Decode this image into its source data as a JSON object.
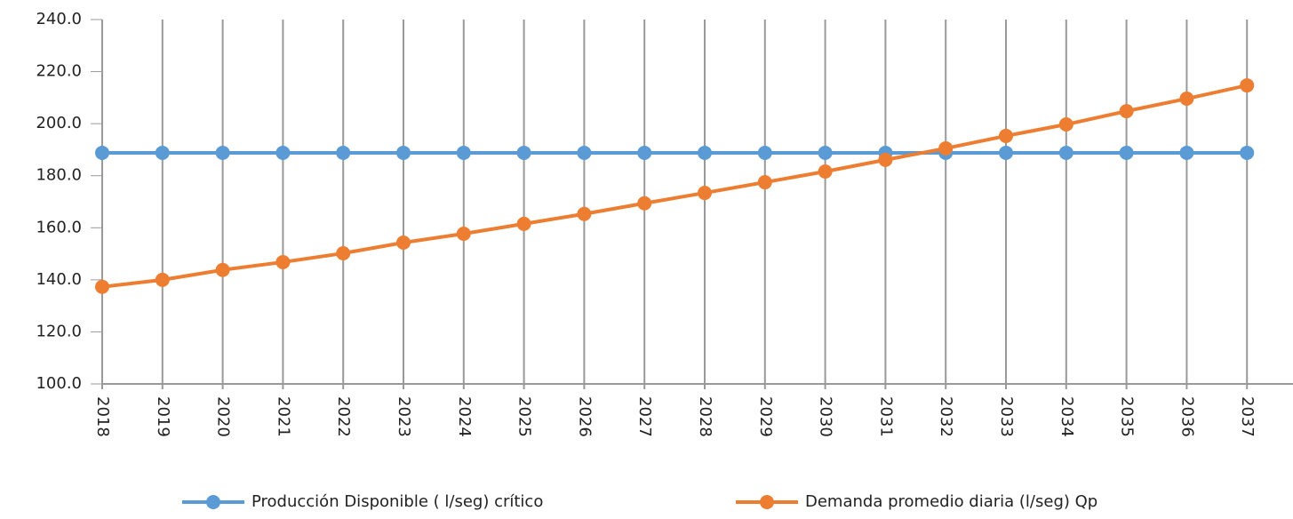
{
  "chart_data": {
    "type": "line",
    "categories": [
      "2018",
      "2019",
      "2020",
      "2021",
      "2022",
      "2023",
      "2024",
      "2025",
      "2026",
      "2027",
      "2028",
      "2029",
      "2030",
      "2031",
      "2032",
      "2033",
      "2034",
      "2035",
      "2036",
      "2037"
    ],
    "series": [
      {
        "name": "Producción Disponible ( l/seg) crítico",
        "color": "#5b9bd5",
        "values": [
          188.8,
          188.8,
          188.8,
          188.8,
          188.8,
          188.8,
          188.8,
          188.8,
          188.8,
          188.8,
          188.8,
          188.8,
          188.8,
          188.8,
          188.8,
          188.8,
          188.8,
          188.8,
          188.8,
          188.8
        ]
      },
      {
        "name": "Demanda promedio diaria (l/seg)  Qp",
        "color": "#ed7d31",
        "values": [
          137.3,
          140.0,
          143.8,
          146.8,
          150.2,
          154.3,
          157.7,
          161.5,
          165.3,
          169.4,
          173.4,
          177.5,
          181.6,
          186.1,
          190.5,
          195.3,
          199.7,
          204.8,
          209.6,
          214.7
        ]
      }
    ],
    "ylim": [
      100,
      240
    ],
    "yticks": [
      {
        "value": 100,
        "label": "100.0"
      },
      {
        "value": 120,
        "label": "120.0"
      },
      {
        "value": 140,
        "label": "140.0"
      },
      {
        "value": 160,
        "label": "160.0"
      },
      {
        "value": 180,
        "label": "180.0"
      },
      {
        "value": 200,
        "label": "200.0"
      },
      {
        "value": 220,
        "label": "220.0"
      },
      {
        "value": 240,
        "label": "240.0"
      }
    ],
    "grid": "x",
    "legend": "bottom"
  }
}
